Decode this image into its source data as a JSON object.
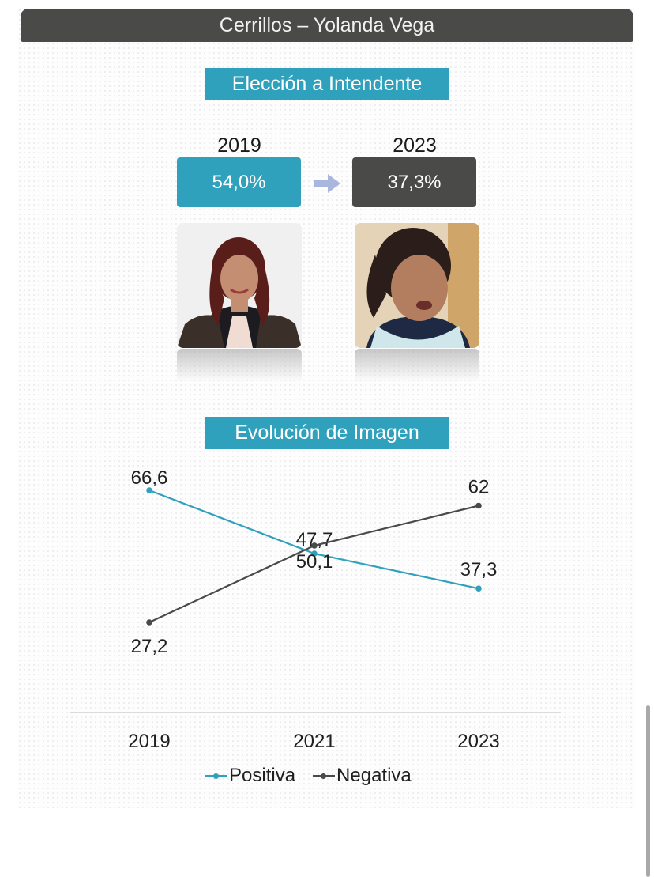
{
  "header": {
    "title": "Cerrillos – Yolanda Vega"
  },
  "election": {
    "title": "Elección a Intendente",
    "left": {
      "year": "2019",
      "value": "54,0%",
      "color": "#2fa1bd"
    },
    "right": {
      "year": "2023",
      "value": "37,3%",
      "color": "#4a4a48"
    }
  },
  "image_section": {
    "title": "Evolución de Imagen"
  },
  "chart_data": {
    "type": "line",
    "x": [
      "2019",
      "2021",
      "2023"
    ],
    "series": [
      {
        "name": "Positiva",
        "values": [
          66.6,
          47.7,
          37.3
        ],
        "labels": [
          "66,6",
          "47,7",
          "37,3"
        ],
        "color": "#2fa1bd"
      },
      {
        "name": "Negativa",
        "values": [
          27.2,
          50.1,
          62.0
        ],
        "labels": [
          "27,2",
          "50,1",
          "62"
        ],
        "color": "#4a4a48"
      }
    ],
    "legend": "bottom",
    "grid": false
  }
}
